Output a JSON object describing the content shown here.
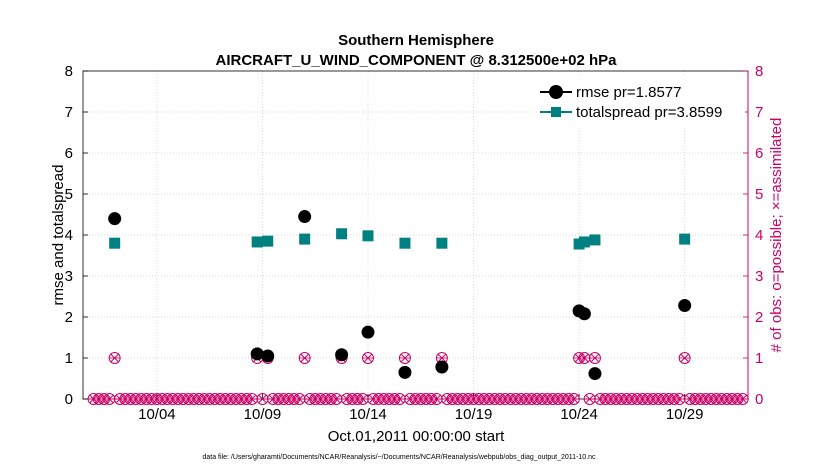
{
  "chart_data": {
    "type": "line",
    "title": "Southern Hemisphere",
    "subtitle": "AIRCRAFT_U_WIND_COMPONENT @ 8.312500e+02 hPa",
    "xlabel": "Oct.01,2011 00:00:00 start",
    "ylabel": "rmse and totalspread",
    "y2label": "# of obs: o=possible; ×=assimilated",
    "footnote": "data file: /Users/gharamti/Documents/NCAR/Reanalysis/~/Documents/NCAR/Reanalysis/webpub/obs_diag_output_2011-10.nc",
    "xlim": [
      0.5,
      32.0
    ],
    "ylim": [
      0,
      8
    ],
    "y2lim": [
      0,
      8
    ],
    "x_ticks": [
      {
        "value": 4,
        "label": "10/04"
      },
      {
        "value": 9,
        "label": "10/09"
      },
      {
        "value": 14,
        "label": "10/14"
      },
      {
        "value": 19,
        "label": "10/19"
      },
      {
        "value": 24,
        "label": "10/24"
      },
      {
        "value": 29,
        "label": "10/29"
      }
    ],
    "y_ticks": [
      "0",
      "1",
      "2",
      "3",
      "4",
      "5",
      "6",
      "7",
      "8"
    ],
    "y2_ticks": [
      "0",
      "1",
      "2",
      "3",
      "4",
      "5",
      "6",
      "7",
      "8"
    ],
    "legend_position": "top-right",
    "series": [
      {
        "name": "rmse pr=1.8577",
        "color": "#000000",
        "marker": "circle",
        "points": [
          [
            2.0,
            4.4
          ],
          [
            8.75,
            1.1
          ],
          [
            9.25,
            1.05
          ],
          [
            11.0,
            4.45
          ],
          [
            12.75,
            1.08
          ],
          [
            14.0,
            1.63
          ],
          [
            15.75,
            0.65
          ],
          [
            17.5,
            0.78
          ],
          [
            24.0,
            2.15
          ],
          [
            24.25,
            2.08
          ],
          [
            24.75,
            0.62
          ],
          [
            29.0,
            2.28
          ]
        ]
      },
      {
        "name": "totalspread pr=3.8599",
        "color": "#008080",
        "marker": "square",
        "points": [
          [
            2.0,
            3.8
          ],
          [
            8.75,
            3.83
          ],
          [
            9.25,
            3.85
          ],
          [
            11.0,
            3.9
          ],
          [
            12.75,
            4.03
          ],
          [
            14.0,
            3.98
          ],
          [
            15.75,
            3.8
          ],
          [
            17.5,
            3.8
          ],
          [
            24.0,
            3.78
          ],
          [
            24.25,
            3.83
          ],
          [
            24.75,
            3.88
          ],
          [
            29.0,
            3.9
          ]
        ]
      }
    ],
    "obs_possible": [
      [
        2.0,
        1
      ],
      [
        8.75,
        1
      ],
      [
        9.25,
        1
      ],
      [
        11.0,
        1
      ],
      [
        12.75,
        1
      ],
      [
        14.0,
        1
      ],
      [
        15.75,
        1
      ],
      [
        17.5,
        1
      ],
      [
        24.0,
        1
      ],
      [
        24.25,
        1
      ],
      [
        24.75,
        1
      ],
      [
        29.0,
        1
      ]
    ],
    "obs_assimilated": [
      [
        2.0,
        1
      ],
      [
        8.75,
        1
      ],
      [
        9.25,
        1
      ],
      [
        11.0,
        1
      ],
      [
        12.75,
        1
      ],
      [
        14.0,
        1
      ],
      [
        15.75,
        1
      ],
      [
        17.5,
        1
      ],
      [
        24.0,
        1
      ],
      [
        24.25,
        1
      ],
      [
        24.75,
        1
      ],
      [
        29.0,
        1
      ]
    ],
    "obs_zero_interval": 0.25
  },
  "colors": {
    "rmse": "#000000",
    "totalspread": "#008080",
    "obs": "#cc0066",
    "grid": "#cccccc"
  }
}
